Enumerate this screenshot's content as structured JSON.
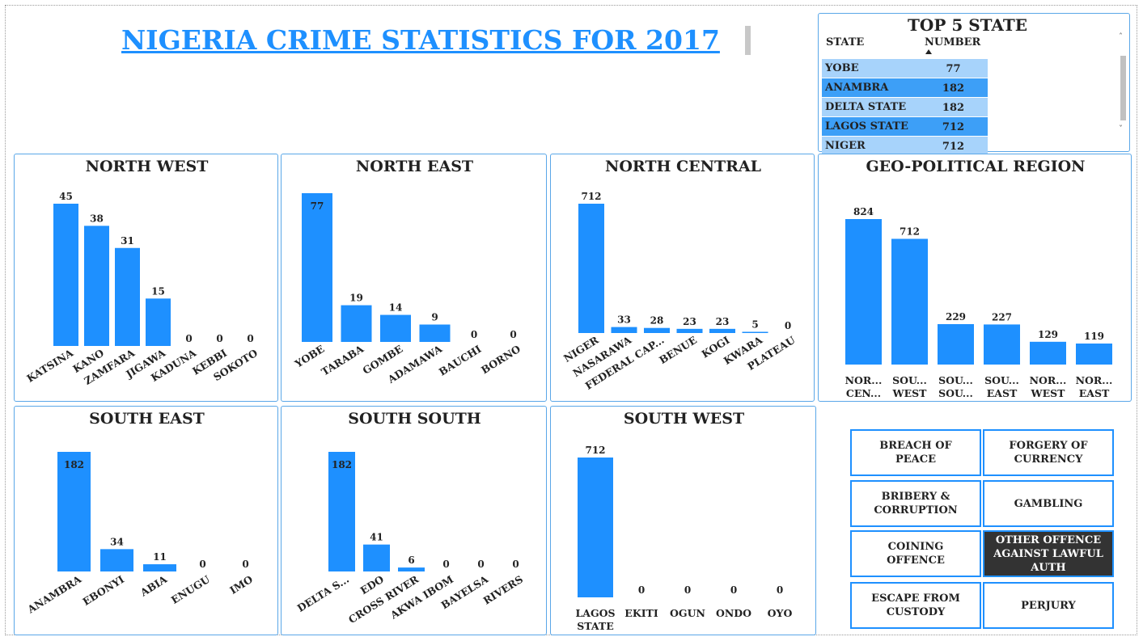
{
  "title": "NIGERIA CRIME STATISTICS FOR 2017",
  "top5": {
    "title": "TOP 5 STATE",
    "col_state": "STATE",
    "col_number": "NUMBER",
    "rows": [
      {
        "state": "YOBE",
        "number": "77"
      },
      {
        "state": "ANAMBRA",
        "number": "182"
      },
      {
        "state": "DELTA STATE",
        "number": "182"
      },
      {
        "state": "LAGOS STATE",
        "number": "712"
      },
      {
        "state": "NIGER",
        "number": "712"
      }
    ]
  },
  "colors": {
    "bar": "#1E90FF",
    "row_light": "#a7d3fb",
    "row_dark": "#3d9ff7",
    "selected_button": "#333333"
  },
  "chart_data": [
    {
      "id": "nw",
      "type": "bar",
      "title": "NORTH WEST",
      "categories": [
        "KATSINA",
        "KANO",
        "ZAMFARA",
        "JIGAWA",
        "KADUNA",
        "KEBBI",
        "SOKOTO"
      ],
      "values": [
        45,
        38,
        31,
        15,
        0,
        0,
        0
      ]
    },
    {
      "id": "ne",
      "type": "bar",
      "title": "NORTH EAST",
      "categories": [
        "YOBE",
        "TARABA",
        "GOMBE",
        "ADAMAWA",
        "BAUCHI",
        "BORNO"
      ],
      "values": [
        77,
        19,
        14,
        9,
        0,
        0
      ]
    },
    {
      "id": "nc",
      "type": "bar",
      "title": "NORTH CENTRAL",
      "categories": [
        "NIGER",
        "NASARAWA",
        "FEDERAL CAP...",
        "BENUE",
        "KOGI",
        "KWARA",
        "PLATEAU"
      ],
      "values": [
        712,
        33,
        28,
        23,
        23,
        5,
        0
      ]
    },
    {
      "id": "gp",
      "type": "bar",
      "title": "GEO-POLITICAL REGION",
      "categories": [
        [
          "NOR...",
          "CEN..."
        ],
        [
          "SOU...",
          "WEST"
        ],
        [
          "SOU...",
          "SOU..."
        ],
        [
          "SOU...",
          "EAST"
        ],
        [
          "NOR...",
          "WEST"
        ],
        [
          "NOR...",
          "EAST"
        ]
      ],
      "values": [
        824,
        712,
        229,
        227,
        129,
        119
      ]
    },
    {
      "id": "se",
      "type": "bar",
      "title": "SOUTH EAST",
      "categories": [
        "ANAMBRA",
        "EBONYI",
        "ABIA",
        "ENUGU",
        "IMO"
      ],
      "values": [
        182,
        34,
        11,
        0,
        0
      ]
    },
    {
      "id": "ss",
      "type": "bar",
      "title": "SOUTH SOUTH",
      "categories": [
        "DELTA S...",
        "EDO",
        "CROSS RIVER",
        "AKWA IBOM",
        "BAYELSA",
        "RIVERS"
      ],
      "values": [
        182,
        41,
        6,
        0,
        0,
        0
      ]
    },
    {
      "id": "sw",
      "type": "bar",
      "title": "SOUTH WEST",
      "categories": [
        [
          "LAGOS",
          "STATE"
        ],
        "EKITI",
        "OGUN",
        "ONDO",
        "OYO"
      ],
      "values": [
        712,
        0,
        0,
        0,
        0
      ]
    }
  ],
  "slicer": {
    "buttons": [
      {
        "label": "BREACH OF PEACE",
        "selected": false
      },
      {
        "label": "FORGERY OF CURRENCY",
        "selected": false
      },
      {
        "label": "BRIBERY & CORRUPTION",
        "selected": false
      },
      {
        "label": "GAMBLING",
        "selected": false
      },
      {
        "label": "COINING OFFENCE",
        "selected": false
      },
      {
        "label": "OTHER OFFENCE AGAINST LAWFUL AUTH",
        "selected": true
      },
      {
        "label": "ESCAPE FROM CUSTODY",
        "selected": false
      },
      {
        "label": "PERJURY",
        "selected": false
      }
    ]
  }
}
